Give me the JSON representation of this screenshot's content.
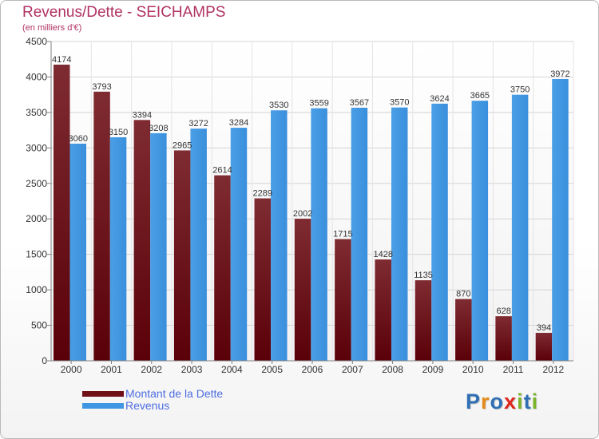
{
  "header": {
    "title": "Revenus/Dette - SEICHAMPS",
    "subtitle": "(en milliers d'€)"
  },
  "legend": {
    "items": [
      {
        "label": "Montant de la Dette",
        "color": "#6e1016"
      },
      {
        "label": "Revenus",
        "color": "#3f97e4"
      }
    ]
  },
  "logo": {
    "letters": [
      {
        "char": "P",
        "color": "#2f6fb4"
      },
      {
        "char": "r",
        "color": "#e58b1a"
      },
      {
        "char": "o",
        "color": "#2f6fb4"
      },
      {
        "char": "x",
        "color": "#e0271d"
      },
      {
        "char": "i",
        "color": "#7bb42a"
      },
      {
        "char": "t",
        "color": "#2f6fb4"
      },
      {
        "char": "i",
        "color": "#7bb42a"
      }
    ]
  },
  "chart_data": {
    "type": "bar",
    "title": "Revenus/Dette - SEICHAMPS",
    "subtitle": "(en milliers d'€)",
    "categories": [
      "2000",
      "2001",
      "2002",
      "2003",
      "2004",
      "2005",
      "2006",
      "2007",
      "2008",
      "2009",
      "2010",
      "2011",
      "2012"
    ],
    "series": [
      {
        "name": "Montant de la Dette",
        "color": "#6e1016",
        "values": [
          4174,
          3793,
          3394,
          2965,
          2614,
          2289,
          2002,
          1715,
          1428,
          1135,
          870,
          628,
          394
        ]
      },
      {
        "name": "Revenus",
        "color": "#3f97e4",
        "values": [
          3060,
          3150,
          3208,
          3272,
          3284,
          3530,
          3559,
          3567,
          3570,
          3624,
          3665,
          3750,
          3972
        ]
      }
    ],
    "data_labels": [
      [
        "4174",
        "3793",
        "3394",
        "2965",
        "2614",
        "2289",
        "2002",
        "1715",
        "1428",
        "1135",
        "870",
        "628",
        "394"
      ],
      [
        "3060",
        "3150",
        "3208",
        "3272",
        "3284",
        "3530",
        "3559",
        "3567",
        "3570",
        "3624",
        "3665",
        "3750",
        "3972"
      ]
    ],
    "ylim": [
      0,
      4500
    ],
    "yticks": [
      0,
      500,
      1000,
      1500,
      2000,
      2500,
      3000,
      3500,
      4000,
      4500
    ],
    "grid": true,
    "legend_position": "bottom-left"
  }
}
